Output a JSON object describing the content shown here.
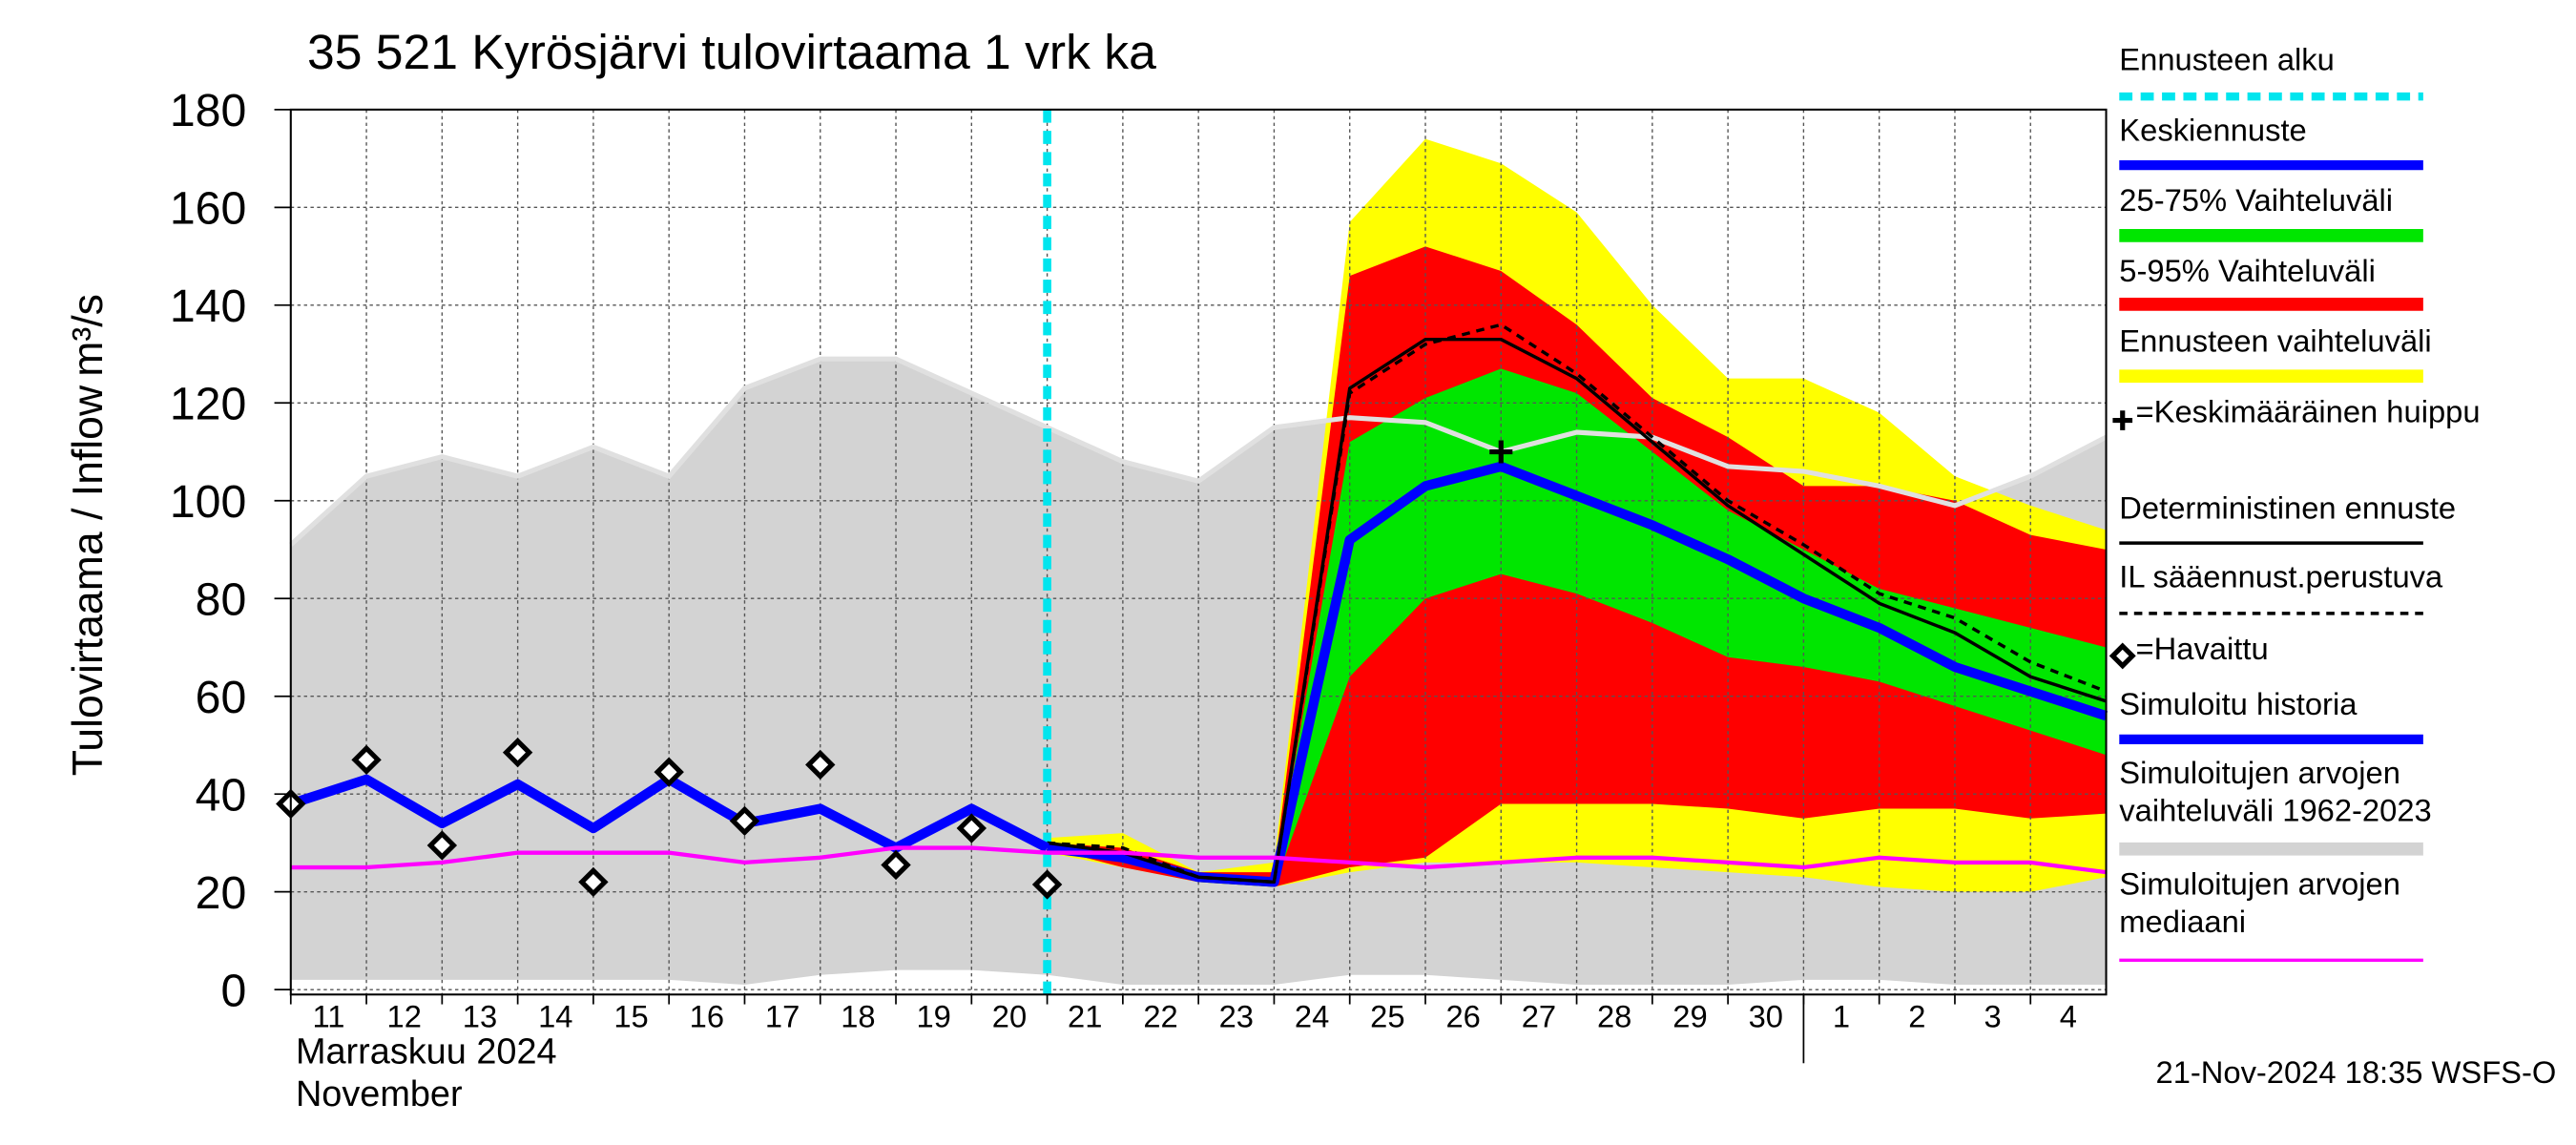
{
  "chart_data": {
    "type": "forecast",
    "title": "35 521 Kyrösjärvi tulovirtaama 1 vrk ka",
    "y_label": "Tulovirtaama / Inflow",
    "y_unit": "m³/s",
    "categories": [
      "11",
      "12",
      "13",
      "14",
      "15",
      "16",
      "17",
      "18",
      "19",
      "20",
      "21",
      "22",
      "23",
      "24",
      "25",
      "26",
      "27",
      "28",
      "29",
      "30",
      "1",
      "2",
      "3",
      "4",
      null
    ],
    "month_labels": [
      "Marraskuu 2024",
      "November"
    ],
    "ylim": [
      0,
      180
    ],
    "yticks": [
      0,
      20,
      40,
      60,
      80,
      100,
      120,
      140,
      160,
      180
    ],
    "grid": true,
    "series": [
      {
        "name": "Ennusteen alku",
        "kind": "vline",
        "color": "#00e5ee",
        "x": 10
      },
      {
        "name": "Keskiennuste",
        "kind": "line",
        "style": "thick",
        "color": "#0000ff",
        "values": [
          null,
          null,
          null,
          null,
          null,
          null,
          null,
          null,
          null,
          null,
          29,
          27,
          23,
          22,
          92,
          103,
          107,
          101,
          95,
          88,
          80,
          74,
          66,
          61,
          56
        ]
      },
      {
        "name": "25-75% Vaihteluväli",
        "kind": "band",
        "color": "#00e600",
        "lower": [
          null,
          null,
          null,
          null,
          null,
          null,
          null,
          null,
          null,
          null,
          29,
          26,
          22,
          21,
          64,
          80,
          85,
          81,
          75,
          68,
          66,
          63,
          58,
          53,
          48
        ],
        "upper": [
          null,
          null,
          null,
          null,
          null,
          null,
          null,
          null,
          null,
          null,
          29,
          28,
          23,
          22,
          112,
          121,
          127,
          122,
          110,
          98,
          90,
          82,
          78,
          74,
          70
        ]
      },
      {
        "name": "5-95% Vaihteluväli",
        "kind": "band",
        "color": "#ff0000",
        "lower": [
          null,
          null,
          null,
          null,
          null,
          null,
          null,
          null,
          null,
          null,
          29,
          25,
          22,
          21,
          25,
          27,
          38,
          38,
          38,
          37,
          35,
          37,
          37,
          35,
          36
        ],
        "upper": [
          null,
          null,
          null,
          null,
          null,
          null,
          null,
          null,
          null,
          null,
          30,
          29,
          24,
          24,
          146,
          152,
          147,
          136,
          121,
          113,
          103,
          103,
          100,
          93,
          90
        ]
      },
      {
        "name": "Ennusteen vaihteluväli",
        "kind": "band",
        "color": "#ffff00",
        "lower": [
          null,
          null,
          null,
          null,
          null,
          null,
          null,
          null,
          null,
          null,
          28,
          25,
          22,
          21,
          24,
          26,
          26,
          26,
          25,
          24,
          23,
          21,
          20,
          20,
          23
        ],
        "upper": [
          null,
          null,
          null,
          null,
          null,
          null,
          null,
          null,
          null,
          null,
          31,
          32,
          24,
          26,
          157,
          174,
          169,
          159,
          140,
          125,
          125,
          118,
          105,
          99,
          94
        ]
      },
      {
        "name": "=Keskimääräinen huippu",
        "kind": "marker",
        "color": "#000000",
        "values": [
          null,
          null,
          null,
          null,
          null,
          null,
          null,
          null,
          null,
          null,
          null,
          null,
          null,
          null,
          null,
          null,
          110,
          null,
          null,
          null,
          null,
          null,
          null,
          null,
          null
        ]
      },
      {
        "name": "Deterministinen ennuste",
        "kind": "line",
        "style": "thin",
        "color": "#000000",
        "values": [
          null,
          null,
          null,
          null,
          null,
          null,
          null,
          null,
          null,
          null,
          30,
          28,
          23,
          22,
          123,
          133,
          133,
          125,
          112,
          99,
          89,
          79,
          73,
          64,
          59
        ]
      },
      {
        "name": "IL sääennust.perustuva",
        "kind": "line",
        "style": "dashed",
        "color": "#000000",
        "values": [
          null,
          null,
          null,
          null,
          null,
          null,
          null,
          null,
          null,
          null,
          30,
          29,
          23,
          22,
          122,
          132,
          136,
          126,
          113,
          100,
          91,
          81,
          76,
          67,
          61
        ]
      },
      {
        "name": "=Havaittu",
        "kind": "scatter",
        "color": "#000000",
        "values": [
          38,
          47,
          29.5,
          48.5,
          22,
          44.5,
          34.5,
          46,
          25.5,
          33,
          21.5,
          null,
          null,
          null,
          null,
          null,
          null,
          null,
          null,
          null,
          null,
          null,
          null,
          null,
          null
        ]
      },
      {
        "name": "Simuloitu historia",
        "kind": "line",
        "style": "thick",
        "color": "#0000ff",
        "values": [
          38,
          43,
          34,
          42,
          33,
          43,
          34,
          37,
          29,
          37,
          29,
          null,
          null,
          null,
          null,
          null,
          null,
          null,
          null,
          null,
          null,
          null,
          null,
          null,
          null
        ]
      },
      {
        "name": "Simuloitujen arvojen vaihteluväli 1962-2023",
        "kind": "band",
        "color": "#d3d3d3",
        "lower": [
          2,
          2,
          2,
          2,
          2,
          2,
          1,
          3,
          4,
          4,
          3,
          1,
          1,
          1,
          3,
          3,
          2,
          1,
          1,
          1,
          2,
          2,
          1,
          1,
          1
        ],
        "upper": [
          91,
          105,
          109,
          105,
          111,
          105,
          123,
          129,
          129,
          122,
          115,
          108,
          104,
          115,
          117,
          116,
          110,
          114,
          113,
          107,
          106,
          103,
          99,
          105,
          113
        ]
      },
      {
        "name": "Simuloitujen arvojen mediaani",
        "kind": "line",
        "style": "medium",
        "color": "#ff00ff",
        "values": [
          25,
          25,
          26,
          28,
          28,
          28,
          26,
          27,
          29,
          29,
          28,
          28,
          27,
          27,
          26,
          25,
          26,
          27,
          27,
          26,
          25,
          27,
          26,
          26,
          24
        ]
      }
    ],
    "footer": "21-Nov-2024 18:35 WSFS-O"
  }
}
